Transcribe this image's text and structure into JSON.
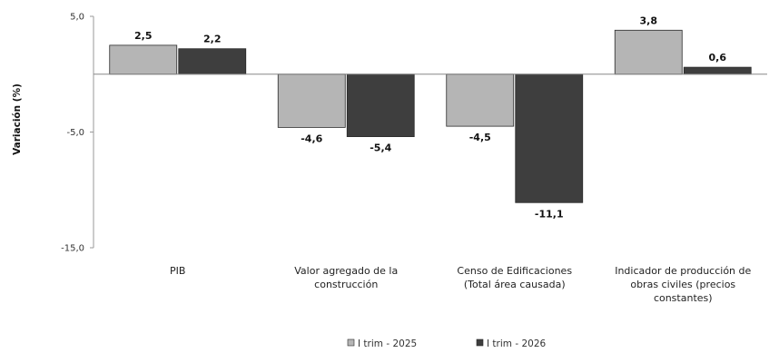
{
  "chart_data": {
    "type": "bar",
    "ylabel": "Variación (%)",
    "ylim": [
      -15,
      5
    ],
    "yticks": [
      5,
      -5,
      -15
    ],
    "ytick_labels": [
      "5,0",
      "-5,0",
      "-15,0"
    ],
    "categories": [
      [
        "PIB"
      ],
      [
        "Valor agregado de la",
        "construcción"
      ],
      [
        "Censo de Edificaciones",
        "(Total área causada)"
      ],
      [
        "Indicador de producción de",
        "obras civiles (precios",
        "constantes)"
      ]
    ],
    "series": [
      {
        "name": "I trim - 2025",
        "color": "#b5b5b5",
        "values": [
          2.5,
          -4.6,
          -4.5,
          3.8
        ],
        "labels": [
          "2,5",
          "-4,6",
          "-4,5",
          "3,8"
        ]
      },
      {
        "name": "I trim - 2026",
        "color": "#3e3e3e",
        "values": [
          2.2,
          -5.4,
          -11.1,
          0.6
        ],
        "labels": [
          "2,2",
          "-5,4",
          "-11,1",
          "0,6"
        ]
      }
    ],
    "legend_position": "bottom-center",
    "grid": false
  }
}
